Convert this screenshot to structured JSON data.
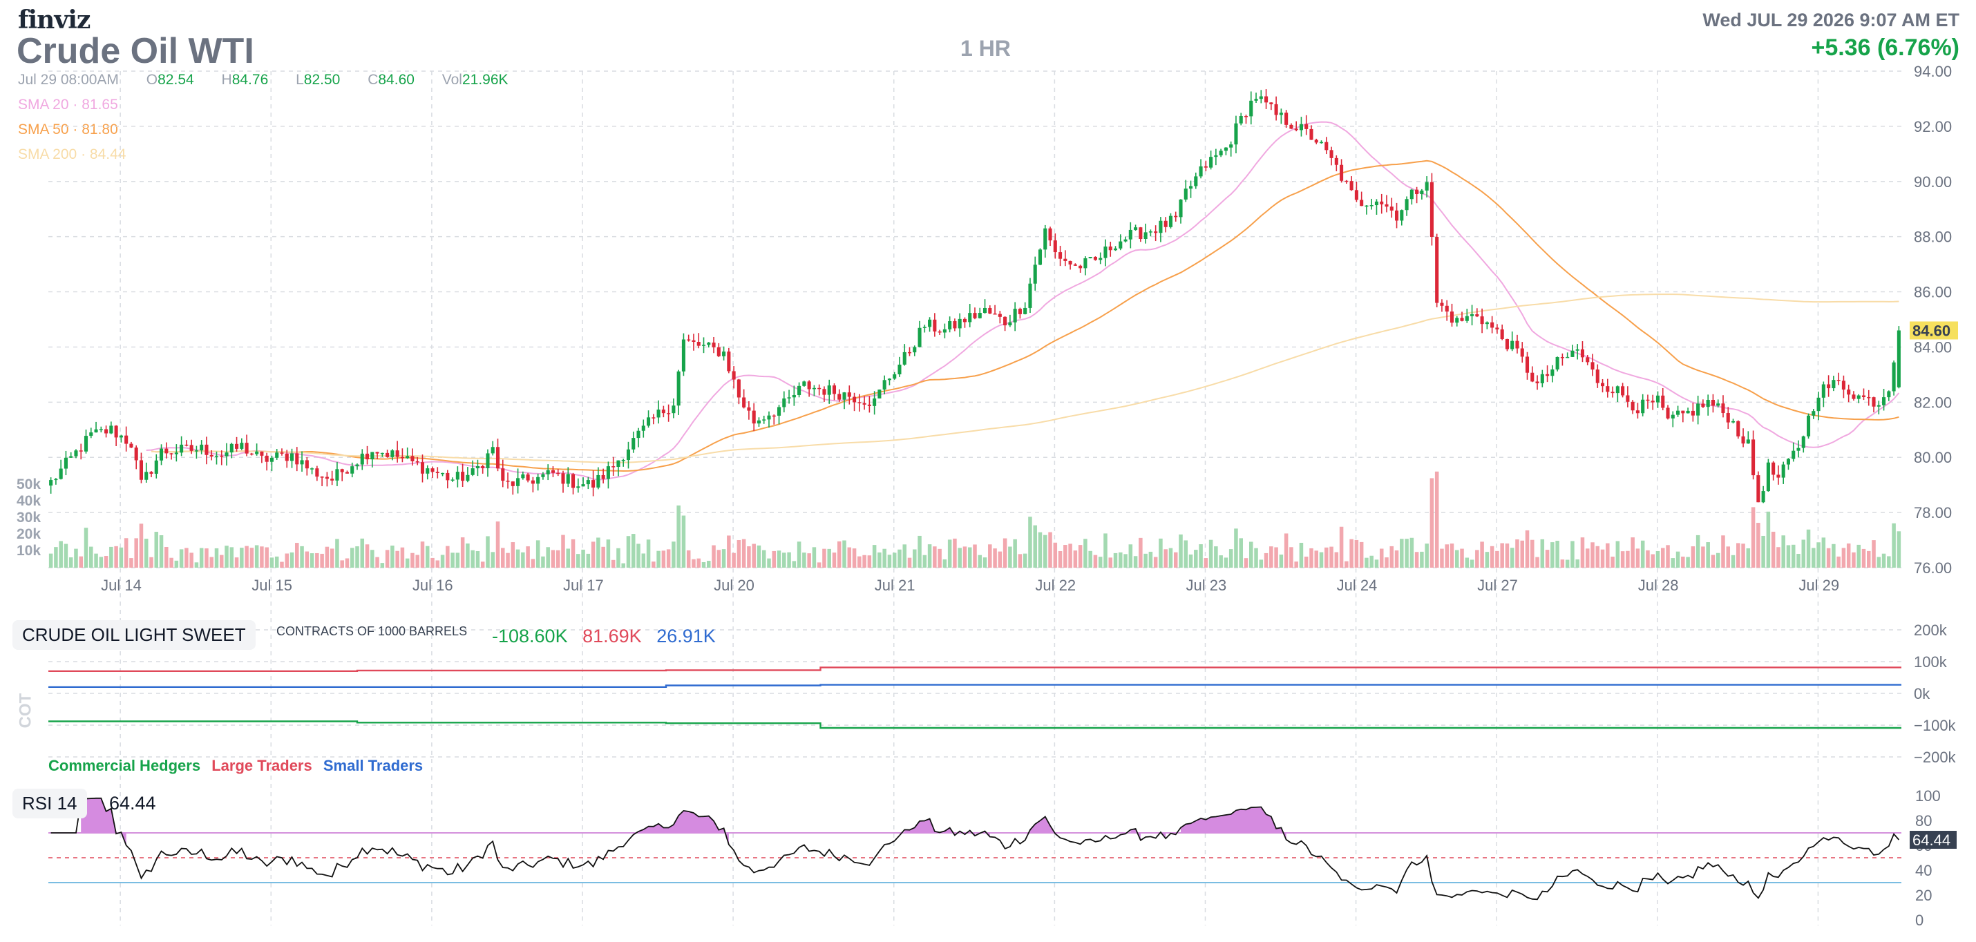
{
  "header": {
    "logo": "finviz",
    "title": "Crude Oil WTI",
    "interval": "1 HR",
    "datetime": "Wed JUL 29 2026 9:07 AM ET",
    "change": "+5.36 (6.76%)"
  },
  "ohlc": {
    "time": "Jul 29 08:00AM",
    "o_label": "O",
    "o": "82.54",
    "h_label": "H",
    "h": "84.76",
    "l_label": "L",
    "l": "82.50",
    "c_label": "C",
    "c": "84.60",
    "vol_label": "Vol",
    "vol": "21.96K"
  },
  "sma": [
    {
      "label": "SMA 20",
      "value": "81.65",
      "color": "#f0a8e0"
    },
    {
      "label": "SMA 50",
      "value": "81.80",
      "color": "#f7a04b"
    },
    {
      "label": "SMA 200",
      "value": "84.44",
      "color": "#f8dca8"
    }
  ],
  "colors": {
    "up": "#16a34a",
    "down": "#dc2637",
    "up_vol": "#a3d9b1",
    "down_vol": "#f2a7ae",
    "grid": "#d9dce1",
    "rsi_fill": "#d58be0"
  },
  "price_axis": [
    "94.00",
    "92.00",
    "90.00",
    "88.00",
    "86.00",
    "84.00",
    "82.00",
    "80.00",
    "78.00",
    "76.00"
  ],
  "current_price": "84.60",
  "volume_axis": [
    "50k",
    "40k",
    "30k",
    "20k",
    "10k"
  ],
  "date_labels": [
    "Jul 14",
    "Jul 15",
    "Jul 16",
    "Jul 17",
    "Jul 20",
    "Jul 21",
    "Jul 22",
    "Jul 23",
    "Jul 24",
    "Jul 27",
    "Jul 28",
    "Jul 29"
  ],
  "cot": {
    "title": "CRUDE OIL LIGHT SWEET",
    "subtitle": "CONTRACTS OF 1000 BARRELS",
    "side_label": "COT",
    "commercial_value": "-108.60K",
    "large_value": "81.69K",
    "small_value": "26.91K",
    "axis": [
      "200k",
      "100k",
      "0k",
      "−100k",
      "−200k"
    ],
    "legend": {
      "commercial": "Commercial Hedgers",
      "large": "Large Traders",
      "small": "Small Traders"
    },
    "colors": {
      "commercial": "#16a34a",
      "large": "#e0495a",
      "small": "#2f6bd0"
    }
  },
  "rsi": {
    "label": "RSI 14",
    "value": "64.44",
    "axis": [
      "100",
      "80",
      "60",
      "40",
      "20",
      "0"
    ]
  },
  "chart_data": [
    {
      "type": "candlestick",
      "title": "Crude Oil WTI",
      "interval": "1 HR",
      "x_labels": [
        "Jul 14",
        "Jul 15",
        "Jul 16",
        "Jul 17",
        "Jul 20",
        "Jul 21",
        "Jul 22",
        "Jul 23",
        "Jul 24",
        "Jul 27",
        "Jul 28",
        "Jul 29"
      ],
      "ylim": [
        76,
        94
      ],
      "price_path": [
        [
          0,
          79.1
        ],
        [
          8,
          80.8
        ],
        [
          12,
          81.0
        ],
        [
          16,
          80.5
        ],
        [
          18,
          79.0
        ],
        [
          22,
          80.2
        ],
        [
          30,
          80.3
        ],
        [
          34,
          80.1
        ],
        [
          38,
          80.4
        ],
        [
          42,
          79.9
        ],
        [
          48,
          80.1
        ],
        [
          52,
          79.5
        ],
        [
          56,
          79.2
        ],
        [
          60,
          79.8
        ],
        [
          64,
          80.3
        ],
        [
          68,
          80.1
        ],
        [
          72,
          79.8
        ],
        [
          76,
          79.5
        ],
        [
          80,
          79.2
        ],
        [
          84,
          79.4
        ],
        [
          88,
          80.3
        ],
        [
          90,
          79.0
        ],
        [
          96,
          79.2
        ],
        [
          100,
          79.4
        ],
        [
          104,
          79.1
        ],
        [
          108,
          79.0
        ],
        [
          112,
          79.7
        ],
        [
          116,
          80.6
        ],
        [
          120,
          81.4
        ],
        [
          124,
          82.0
        ],
        [
          126,
          84.2
        ],
        [
          134,
          83.8
        ],
        [
          137,
          82.2
        ],
        [
          140,
          81.3
        ],
        [
          146,
          81.9
        ],
        [
          150,
          82.6
        ],
        [
          158,
          82.3
        ],
        [
          164,
          82.0
        ],
        [
          166,
          82.7
        ],
        [
          170,
          83.6
        ],
        [
          174,
          84.8
        ],
        [
          178,
          84.6
        ],
        [
          182,
          85.0
        ],
        [
          186,
          85.3
        ],
        [
          190,
          84.9
        ],
        [
          194,
          85.6
        ],
        [
          196,
          87.0
        ],
        [
          198,
          88.2
        ],
        [
          200,
          87.4
        ],
        [
          204,
          86.9
        ],
        [
          208,
          87.1
        ],
        [
          212,
          87.8
        ],
        [
          216,
          88.1
        ],
        [
          220,
          88.3
        ],
        [
          224,
          88.6
        ],
        [
          226,
          89.6
        ],
        [
          230,
          90.6
        ],
        [
          234,
          91.2
        ],
        [
          238,
          92.6
        ],
        [
          240,
          93.1
        ],
        [
          244,
          92.4
        ],
        [
          248,
          92.0
        ],
        [
          252,
          91.5
        ],
        [
          256,
          90.5
        ],
        [
          260,
          89.2
        ],
        [
          264,
          89.4
        ],
        [
          268,
          88.8
        ],
        [
          270,
          89.3
        ],
        [
          274,
          90.1
        ],
        [
          276,
          85.6
        ],
        [
          280,
          84.9
        ],
        [
          284,
          85.2
        ],
        [
          288,
          84.5
        ],
        [
          292,
          83.8
        ],
        [
          296,
          82.6
        ],
        [
          300,
          83.4
        ],
        [
          304,
          83.9
        ],
        [
          308,
          82.8
        ],
        [
          312,
          82.4
        ],
        [
          316,
          81.8
        ],
        [
          320,
          82.0
        ],
        [
          322,
          81.3
        ],
        [
          326,
          81.6
        ],
        [
          330,
          82.0
        ],
        [
          334,
          81.5
        ],
        [
          338,
          80.4
        ],
        [
          340,
          78.4
        ],
        [
          342,
          79.6
        ],
        [
          344,
          79.2
        ],
        [
          348,
          80.4
        ],
        [
          352,
          82.4
        ],
        [
          356,
          82.7
        ],
        [
          360,
          82.2
        ],
        [
          364,
          82.0
        ],
        [
          366,
          82.6
        ],
        [
          368,
          84.6
        ]
      ],
      "last": {
        "open": 82.54,
        "high": 84.76,
        "low": 82.5,
        "close": 84.6,
        "volume": "21.96K"
      },
      "change": "+5.36",
      "change_percent": "6.76%",
      "sma": {
        "SMA 20": 81.65,
        "SMA 50": 81.8,
        "SMA 200": 84.44
      },
      "volume_axis": [
        "10k",
        "20k",
        "30k",
        "40k",
        "50k"
      ]
    },
    {
      "type": "line",
      "title": "CRUDE OIL LIGHT SWEET",
      "subtitle": "CONTRACTS OF 1000 BARRELS",
      "ylim": [
        -200,
        200
      ],
      "series": [
        {
          "name": "Commercial Hedgers",
          "values": [
            -88,
            -88,
            -92,
            -92,
            -94,
            -108.6,
            -108.6,
            -108.6,
            -108.6,
            -108.6,
            -108.6,
            -108.6
          ]
        },
        {
          "name": "Large Traders",
          "values": [
            70,
            70,
            72,
            72,
            73,
            81.69,
            81.69,
            81.69,
            81.69,
            81.69,
            81.69,
            81.69
          ]
        },
        {
          "name": "Small Traders",
          "values": [
            20,
            20,
            20,
            20,
            25,
            26.91,
            26.91,
            26.91,
            26.91,
            26.91,
            26.91,
            26.91
          ]
        }
      ],
      "last_values": {
        "Commercial Hedgers": "-108.60K",
        "Large Traders": "81.69K",
        "Small Traders": "26.91K"
      }
    },
    {
      "type": "line",
      "title": "RSI 14",
      "ylim": [
        0,
        100
      ],
      "levels": [
        70,
        50,
        30
      ],
      "last": 64.44
    }
  ]
}
